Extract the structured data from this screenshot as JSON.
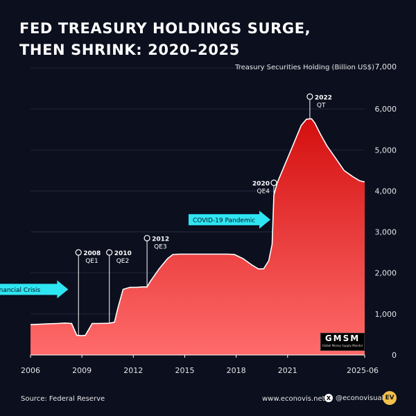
{
  "title_lines": [
    "FED TREASURY HOLDINGS SURGE,",
    "THEN SHRINK: 2020–2025"
  ],
  "footer": {
    "source": "Source: Federal Reserve",
    "website": "www.econovis.net",
    "social": "@econovisuals",
    "logo_text": "EV"
  },
  "watermark": {
    "main": "GMSM",
    "sub": "Global Money Supply Monitor"
  },
  "colors": {
    "background": "#0b0f1e",
    "area_top": "#d40f0f",
    "area_bottom": "#ff6b6b",
    "line": "#ffffff",
    "arrow": "#2ee6f2"
  },
  "chart_data": {
    "type": "area",
    "ylabel": "Treasury Securities Holding (Billion US$)",
    "ylim": [
      0,
      7000
    ],
    "yticks": [
      0,
      1000,
      2000,
      3000,
      4000,
      5000,
      6000,
      7000
    ],
    "ytick_labels": [
      "0",
      "1,000",
      "2,000",
      "3,000",
      "4,000",
      "5,000",
      "6,000",
      "7,000"
    ],
    "xlim": [
      2006.0,
      2025.5
    ],
    "xticks": [
      2006,
      2009,
      2012,
      2015,
      2018,
      2021,
      2025.5
    ],
    "xtick_labels": [
      "2006",
      "2009",
      "2012",
      "2015",
      "2018",
      "2021",
      "2025-06"
    ],
    "x": [
      2006.0,
      2007.0,
      2007.6,
      2008.0,
      2008.4,
      2008.7,
      2009.0,
      2009.2,
      2009.6,
      2010.0,
      2010.6,
      2010.9,
      2011.1,
      2011.4,
      2011.8,
      2012.2,
      2012.5,
      2012.8,
      2013.0,
      2013.5,
      2014.0,
      2014.3,
      2014.7,
      2015.0,
      2016.0,
      2017.0,
      2017.5,
      2017.9,
      2018.4,
      2018.9,
      2019.3,
      2019.6,
      2019.9,
      2020.1,
      2020.2,
      2020.4,
      2020.8,
      2021.3,
      2021.8,
      2022.1,
      2022.4,
      2022.6,
      2022.9,
      2023.3,
      2023.8,
      2024.3,
      2024.8,
      2025.2,
      2025.5
    ],
    "y": [
      740,
      760,
      770,
      780,
      770,
      480,
      470,
      480,
      770,
      770,
      775,
      800,
      1150,
      1600,
      1650,
      1650,
      1660,
      1660,
      1800,
      2100,
      2350,
      2450,
      2460,
      2460,
      2460,
      2460,
      2460,
      2450,
      2350,
      2200,
      2100,
      2100,
      2300,
      2700,
      3900,
      4200,
      4600,
      5100,
      5600,
      5750,
      5760,
      5650,
      5400,
      5100,
      4800,
      4500,
      4350,
      4250,
      4220
    ],
    "annotations": [
      {
        "label": "2008",
        "sublabel": "QE1",
        "x": 2008.8,
        "y": 2500
      },
      {
        "label": "2010",
        "sublabel": "QE2",
        "x": 2010.6,
        "y": 2500
      },
      {
        "label": "2012",
        "sublabel": "QE3",
        "x": 2012.8,
        "y": 2850
      },
      {
        "label": "2020",
        "sublabel": "QE4",
        "x": 2020.2,
        "y": 4200
      },
      {
        "label": "2022",
        "sublabel": "QT",
        "x": 2022.3,
        "y": 6300
      }
    ],
    "callouts": [
      {
        "text": "Financial Crisis",
        "x": 2008.2,
        "y": 1600
      },
      {
        "text": "COVID-19 Pandemic",
        "x": 2020.0,
        "y": 3300
      }
    ]
  }
}
